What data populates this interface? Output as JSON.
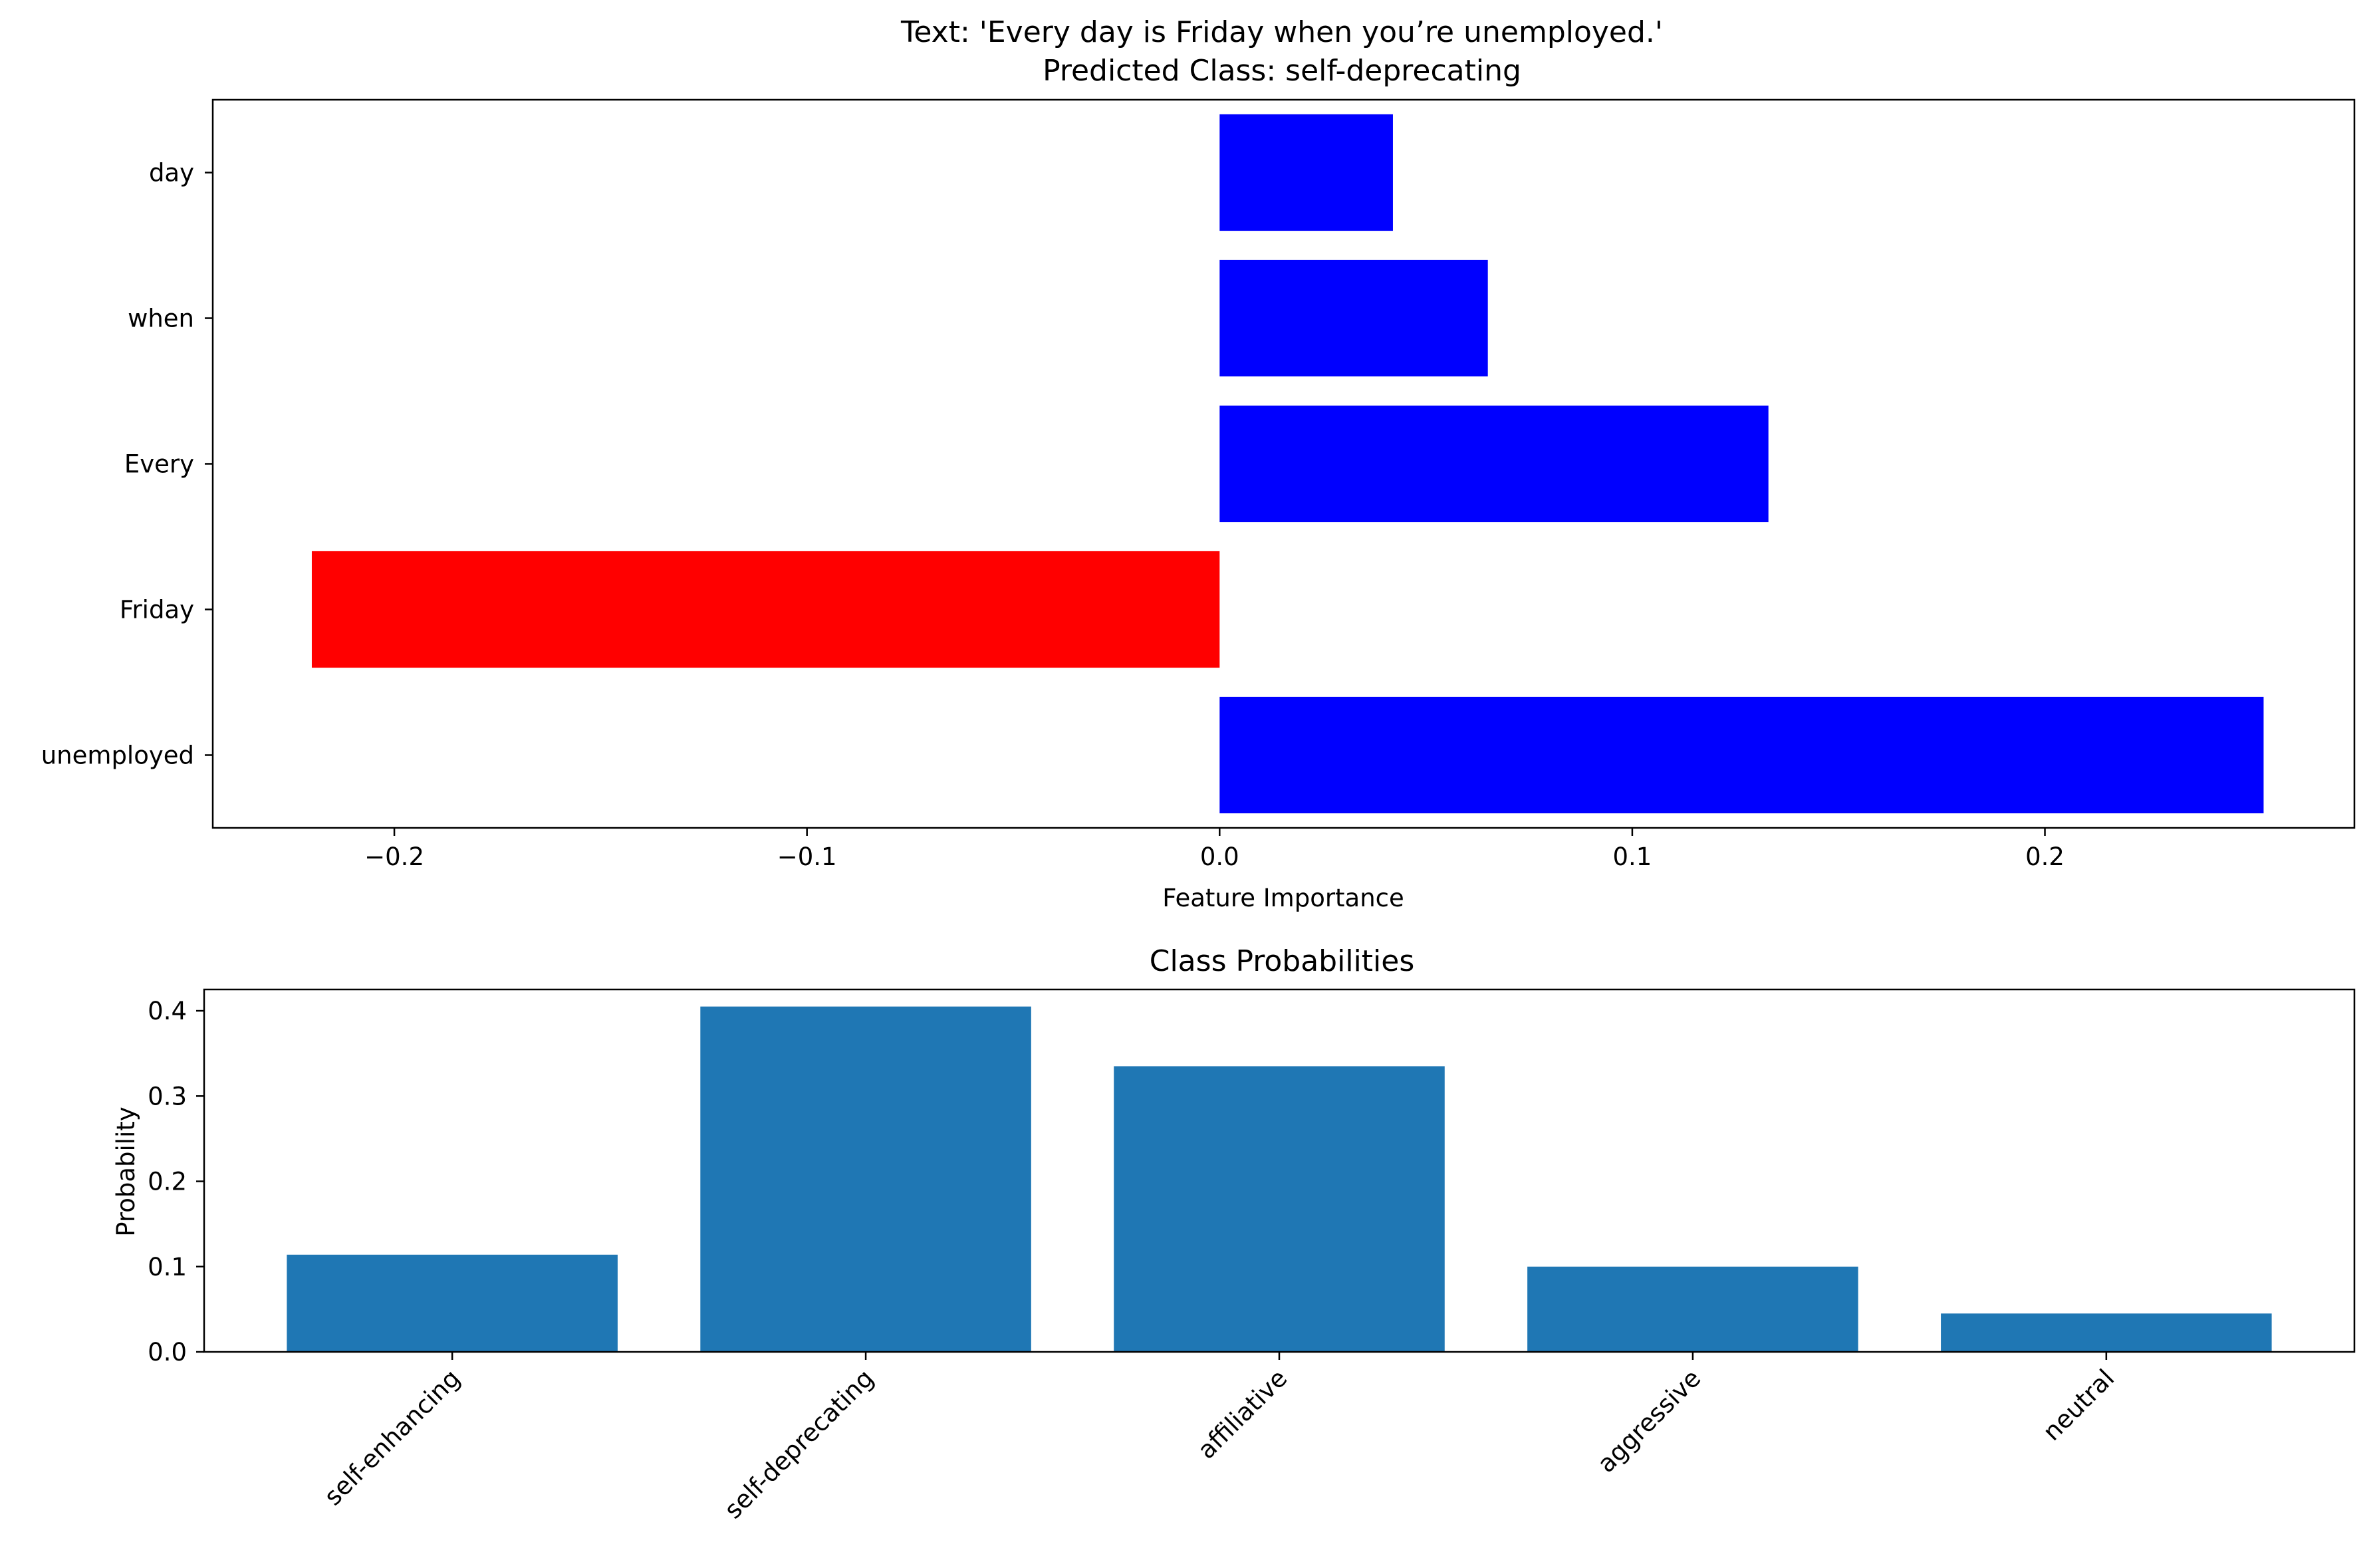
{
  "colors": {
    "positive": "#0000ff",
    "negative": "#ff0000",
    "probability": "#1f77b4",
    "axis": "#000000",
    "background": "#ffffff"
  },
  "chart_data": [
    {
      "type": "bar",
      "orientation": "horizontal",
      "title": "Text: 'Every day is Friday when you’re unemployed.'",
      "subtitle": "Predicted Class: self-deprecating",
      "xlabel": "Feature Importance",
      "ylabel": "",
      "categories": [
        "day",
        "when",
        "Every",
        "Friday",
        "unemployed"
      ],
      "values": [
        0.042,
        0.065,
        0.133,
        -0.22,
        0.253
      ],
      "xlim": [
        -0.244,
        0.275
      ],
      "xticks": [
        -0.2,
        -0.1,
        0.0,
        0.1,
        0.2
      ],
      "xtick_labels": [
        "−0.2",
        "−0.1",
        "0.0",
        "0.1",
        "0.2"
      ],
      "grid": false,
      "legend": "none",
      "color_rule": "positive values blue, negative values red"
    },
    {
      "type": "bar",
      "title": "Class Probabilities",
      "xlabel": "",
      "ylabel": "Probability",
      "categories": [
        "self-enhancing",
        "self-deprecating",
        "affiliative",
        "aggressive",
        "neutral"
      ],
      "values": [
        0.114,
        0.405,
        0.335,
        0.1,
        0.045
      ],
      "ylim": [
        0,
        0.425
      ],
      "yticks": [
        0.0,
        0.1,
        0.2,
        0.3,
        0.4
      ],
      "ytick_labels": [
        "0.0",
        "0.1",
        "0.2",
        "0.3",
        "0.4"
      ],
      "xtick_rotation": 45,
      "grid": false,
      "legend": "none"
    }
  ]
}
